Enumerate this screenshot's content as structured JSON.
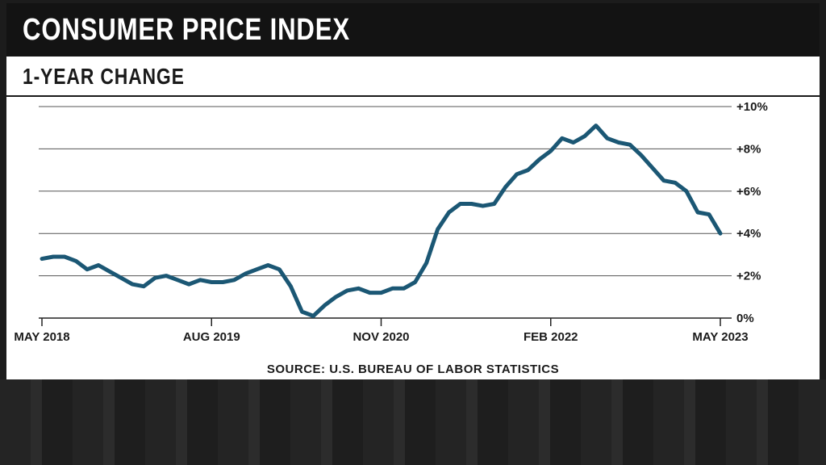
{
  "title": "CONSUMER PRICE INDEX",
  "subtitle": "1-YEAR CHANGE",
  "source": "SOURCE: U.S. BUREAU OF LABOR STATISTICS",
  "colors": {
    "line": "#1b5774",
    "grid": "#555555",
    "title_bg": "#131313"
  },
  "chart_data": {
    "type": "line",
    "title": "CONSUMER PRICE INDEX",
    "subtitle": "1-YEAR CHANGE",
    "xlabel": "",
    "ylabel": "",
    "ylim": [
      0,
      10
    ],
    "grid": true,
    "y_ticks": [
      0,
      2,
      4,
      6,
      8,
      10
    ],
    "y_tick_labels": [
      "0%",
      "+2%",
      "+4%",
      "+6%",
      "+8%",
      "+10%"
    ],
    "x_tick_labels": [
      "MAY 2018",
      "AUG 2019",
      "NOV 2020",
      "FEB 2022",
      "MAY 2023"
    ],
    "x_tick_positions": [
      "2018-05",
      "2019-08",
      "2020-11",
      "2022-02",
      "2023-05"
    ],
    "series": [
      {
        "name": "",
        "x": [
          "2018-05",
          "2018-06",
          "2018-07",
          "2018-08",
          "2018-09",
          "2018-10",
          "2018-11",
          "2018-12",
          "2019-01",
          "2019-02",
          "2019-03",
          "2019-04",
          "2019-05",
          "2019-06",
          "2019-07",
          "2019-08",
          "2019-09",
          "2019-10",
          "2019-11",
          "2019-12",
          "2020-01",
          "2020-02",
          "2020-03",
          "2020-04",
          "2020-05",
          "2020-06",
          "2020-07",
          "2020-08",
          "2020-09",
          "2020-10",
          "2020-11",
          "2020-12",
          "2021-01",
          "2021-02",
          "2021-03",
          "2021-04",
          "2021-05",
          "2021-06",
          "2021-07",
          "2021-08",
          "2021-09",
          "2021-10",
          "2021-11",
          "2021-12",
          "2022-01",
          "2022-02",
          "2022-03",
          "2022-04",
          "2022-05",
          "2022-06",
          "2022-07",
          "2022-08",
          "2022-09",
          "2022-10",
          "2022-11",
          "2022-12",
          "2023-01",
          "2023-02",
          "2023-03",
          "2023-04",
          "2023-05"
        ],
        "values": [
          2.8,
          2.9,
          2.9,
          2.7,
          2.3,
          2.5,
          2.2,
          1.9,
          1.6,
          1.5,
          1.9,
          2.0,
          1.8,
          1.6,
          1.8,
          1.7,
          1.7,
          1.8,
          2.1,
          2.3,
          2.5,
          2.3,
          1.5,
          0.3,
          0.1,
          0.6,
          1.0,
          1.3,
          1.4,
          1.2,
          1.2,
          1.4,
          1.4,
          1.7,
          2.6,
          4.2,
          5.0,
          5.4,
          5.4,
          5.3,
          5.4,
          6.2,
          6.8,
          7.0,
          7.5,
          7.9,
          8.5,
          8.3,
          8.6,
          9.1,
          8.5,
          8.3,
          8.2,
          7.7,
          7.1,
          6.5,
          6.4,
          6.0,
          5.0,
          4.9,
          4.0
        ]
      }
    ]
  }
}
